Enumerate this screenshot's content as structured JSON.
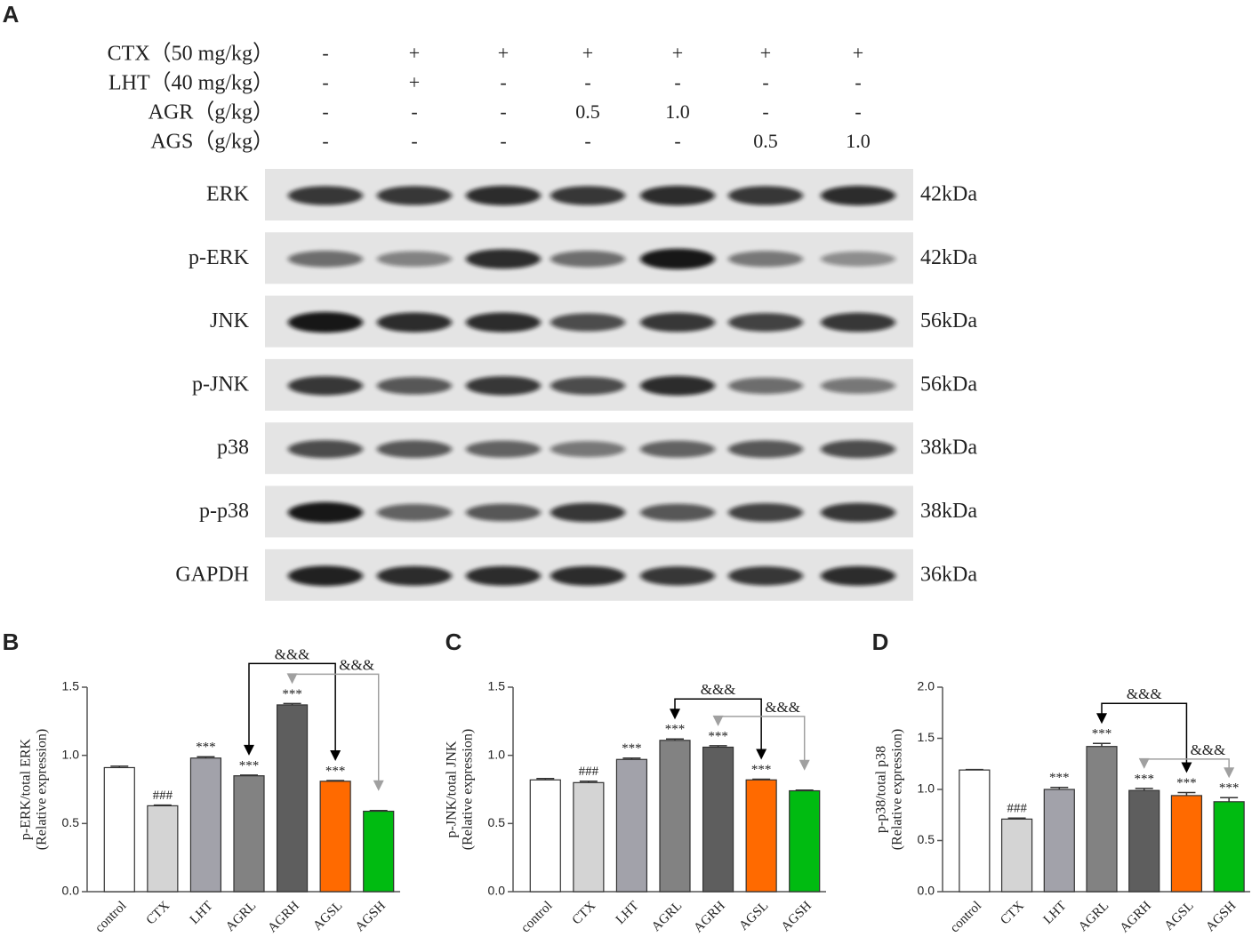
{
  "panel_labels": [
    "A",
    "B",
    "C",
    "D"
  ],
  "treatments": {
    "rows": [
      {
        "label": "CTX（50 mg/kg）",
        "values": [
          "-",
          "+",
          "+",
          "+",
          "+",
          "+",
          "+"
        ]
      },
      {
        "label": "LHT（40 mg/kg）",
        "values": [
          "-",
          "+",
          "-",
          "-",
          "-",
          "-",
          "-"
        ]
      },
      {
        "label": "AGR（g/kg）",
        "values": [
          "-",
          "-",
          "-",
          "0.5",
          "1.0",
          "-",
          "-"
        ]
      },
      {
        "label": "AGS（g/kg）",
        "values": [
          "-",
          "-",
          "-",
          "-",
          "-",
          "0.5",
          "1.0"
        ]
      }
    ]
  },
  "blot": {
    "rows": [
      {
        "protein": "ERK",
        "size": "42kDa"
      },
      {
        "protein": "p-ERK",
        "size": "42kDa"
      },
      {
        "protein": "JNK",
        "size": "56kDa"
      },
      {
        "protein": "p-JNK",
        "size": "56kDa"
      },
      {
        "protein": "p38",
        "size": "38kDa"
      },
      {
        "protein": "p-p38",
        "size": "38kDa"
      },
      {
        "protein": "GAPDH",
        "size": "36kDa"
      }
    ]
  },
  "chart_data": [
    {
      "type": "bar",
      "y_label": "p-ERK/total ERK",
      "y_label_sub": "(Relative expression)",
      "categories": [
        "control",
        "CTX",
        "LHT",
        "AGRL",
        "AGRH",
        "AGSL",
        "AGSH"
      ],
      "values": [
        0.91,
        0.63,
        0.98,
        0.85,
        1.37,
        0.81,
        0.59
      ],
      "errors": [
        0.01,
        0.005,
        0.01,
        0.005,
        0.01,
        0.005,
        0.005
      ],
      "colors": [
        "#ffffff",
        "#d4d4d4",
        "#a2a2aa",
        "#828282",
        "#5e5e5e",
        "#ff6a00",
        "#00bb11"
      ],
      "annotations": [
        null,
        "###",
        "***",
        "***",
        "***",
        "***",
        null
      ],
      "comparisons": [
        {
          "label": "&&&",
          "between": [
            "AGRL",
            "AGSL"
          ],
          "color": "#000000"
        },
        {
          "label": "&&&",
          "between": [
            "AGRH",
            "AGSH"
          ],
          "color": "#a0a0a0"
        }
      ],
      "ylim": [
        0,
        1.5
      ],
      "yticks": [
        {
          "value": 0,
          "label": "0.0"
        },
        0.5,
        {
          "value": 1,
          "label": "1.0"
        },
        1.5
      ]
    },
    {
      "type": "bar",
      "y_label": "p-JNK/total JNK",
      "y_label_sub": "(Relative expression)",
      "categories": [
        "control",
        "CTX",
        "LHT",
        "AGRL",
        "AGRH",
        "AGSL",
        "AGSH"
      ],
      "values": [
        0.82,
        0.8,
        0.97,
        1.11,
        1.06,
        0.82,
        0.74
      ],
      "errors": [
        0.01,
        0.01,
        0.01,
        0.01,
        0.01,
        0.005,
        0.005
      ],
      "colors": [
        "#ffffff",
        "#d4d4d4",
        "#a2a2aa",
        "#828282",
        "#5e5e5e",
        "#ff6a00",
        "#00bb11"
      ],
      "annotations": [
        null,
        "###",
        "***",
        "***",
        "***",
        "***",
        null
      ],
      "comparisons": [
        {
          "label": "&&&",
          "between": [
            "AGRL",
            "AGSL"
          ],
          "color": "#000000"
        },
        {
          "label": "&&&",
          "between": [
            "AGRH",
            "AGSH"
          ],
          "color": "#a0a0a0"
        }
      ],
      "ylim": [
        0,
        1.5
      ],
      "yticks": [
        {
          "value": 0,
          "label": "0.0"
        },
        0.5,
        {
          "value": 1,
          "label": "1.0"
        },
        1.5
      ]
    },
    {
      "type": "bar",
      "y_label": "p-p38/total p38",
      "y_label_sub": "(Relative expression)",
      "categories": [
        "control",
        "CTX",
        "LHT",
        "AGRL",
        "AGRH",
        "AGSL",
        "AGSH"
      ],
      "values": [
        1.19,
        0.71,
        1.0,
        1.42,
        0.99,
        0.94,
        0.88
      ],
      "errors": [
        0.005,
        0.01,
        0.02,
        0.03,
        0.02,
        0.03,
        0.04
      ],
      "colors": [
        "#ffffff",
        "#d4d4d4",
        "#a2a2aa",
        "#828282",
        "#5e5e5e",
        "#ff6a00",
        "#00bb11"
      ],
      "annotations": [
        null,
        "###",
        "***",
        "***",
        "***",
        "***",
        "***"
      ],
      "comparisons": [
        {
          "label": "&&&",
          "between": [
            "AGRL",
            "AGSL"
          ],
          "color": "#000000"
        },
        {
          "label": "&&&",
          "between": [
            "AGRH",
            "AGSH"
          ],
          "color": "#a0a0a0"
        }
      ],
      "ylim": [
        0,
        2
      ],
      "yticks": [
        {
          "value": 0,
          "label": "0.0"
        },
        0.5,
        {
          "value": 1,
          "label": "1.0"
        },
        1.5,
        {
          "value": 2,
          "label": "2.0"
        }
      ]
    }
  ]
}
